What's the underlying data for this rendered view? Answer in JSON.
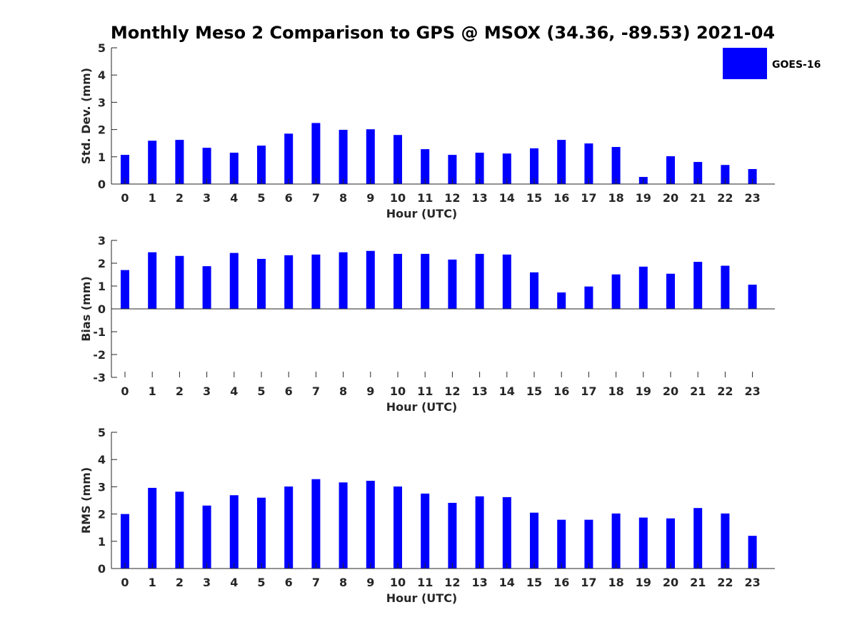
{
  "title": "Monthly Meso 2 Comparison to GPS @ MSOX (34.36, -89.53) 2021-04",
  "legend": {
    "label": "GOES-16",
    "color": "#0000ff",
    "placement": "top-right"
  },
  "chart_data": [
    {
      "type": "bar",
      "xlabel": "Hour (UTC)",
      "ylabel": "Std. Dev. (mm)",
      "ylim": [
        0,
        5
      ],
      "yticks": [
        "0",
        "1",
        "2",
        "3",
        "4",
        "5"
      ],
      "categories": [
        "0",
        "1",
        "2",
        "3",
        "4",
        "5",
        "6",
        "7",
        "8",
        "9",
        "10",
        "11",
        "12",
        "13",
        "14",
        "15",
        "16",
        "17",
        "18",
        "19",
        "20",
        "21",
        "22",
        "23"
      ],
      "series": [
        {
          "name": "GOES-16",
          "color": "#0000ff",
          "values": [
            1.07,
            1.59,
            1.62,
            1.33,
            1.15,
            1.41,
            1.85,
            2.24,
            1.99,
            2.01,
            1.8,
            1.28,
            1.07,
            1.15,
            1.12,
            1.31,
            1.62,
            1.49,
            1.36,
            0.26,
            1.02,
            0.81,
            0.7,
            0.55
          ]
        }
      ],
      "grid": false
    },
    {
      "type": "bar",
      "xlabel": "Hour (UTC)",
      "ylabel": "Bias (mm)",
      "ylim": [
        -3,
        3
      ],
      "yticks": [
        "-3",
        "-2",
        "-1",
        "0",
        "1",
        "2",
        "3"
      ],
      "categories": [
        "0",
        "1",
        "2",
        "3",
        "4",
        "5",
        "6",
        "7",
        "8",
        "9",
        "10",
        "11",
        "12",
        "13",
        "14",
        "15",
        "16",
        "17",
        "18",
        "19",
        "20",
        "21",
        "22",
        "23"
      ],
      "series": [
        {
          "name": "GOES-16",
          "color": "#0000ff",
          "values": [
            1.7,
            2.48,
            2.32,
            1.87,
            2.45,
            2.19,
            2.35,
            2.38,
            2.48,
            2.54,
            2.41,
            2.41,
            2.16,
            2.41,
            2.38,
            1.6,
            0.72,
            0.98,
            1.51,
            1.85,
            1.54,
            2.06,
            1.89,
            1.06
          ]
        }
      ],
      "grid": false
    },
    {
      "type": "bar",
      "xlabel": "Hour (UTC)",
      "ylabel": "RMS (mm)",
      "ylim": [
        0,
        5
      ],
      "yticks": [
        "0",
        "1",
        "2",
        "3",
        "4",
        "5"
      ],
      "categories": [
        "0",
        "1",
        "2",
        "3",
        "4",
        "5",
        "6",
        "7",
        "8",
        "9",
        "10",
        "11",
        "12",
        "13",
        "14",
        "15",
        "16",
        "17",
        "18",
        "19",
        "20",
        "21",
        "22",
        "23"
      ],
      "series": [
        {
          "name": "GOES-16",
          "color": "#0000ff",
          "values": [
            2.0,
            2.96,
            2.82,
            2.31,
            2.69,
            2.6,
            3.01,
            3.28,
            3.16,
            3.22,
            3.01,
            2.75,
            2.41,
            2.65,
            2.62,
            2.05,
            1.79,
            1.79,
            2.02,
            1.87,
            1.84,
            2.22,
            2.02,
            1.2
          ]
        }
      ],
      "grid": false
    }
  ]
}
